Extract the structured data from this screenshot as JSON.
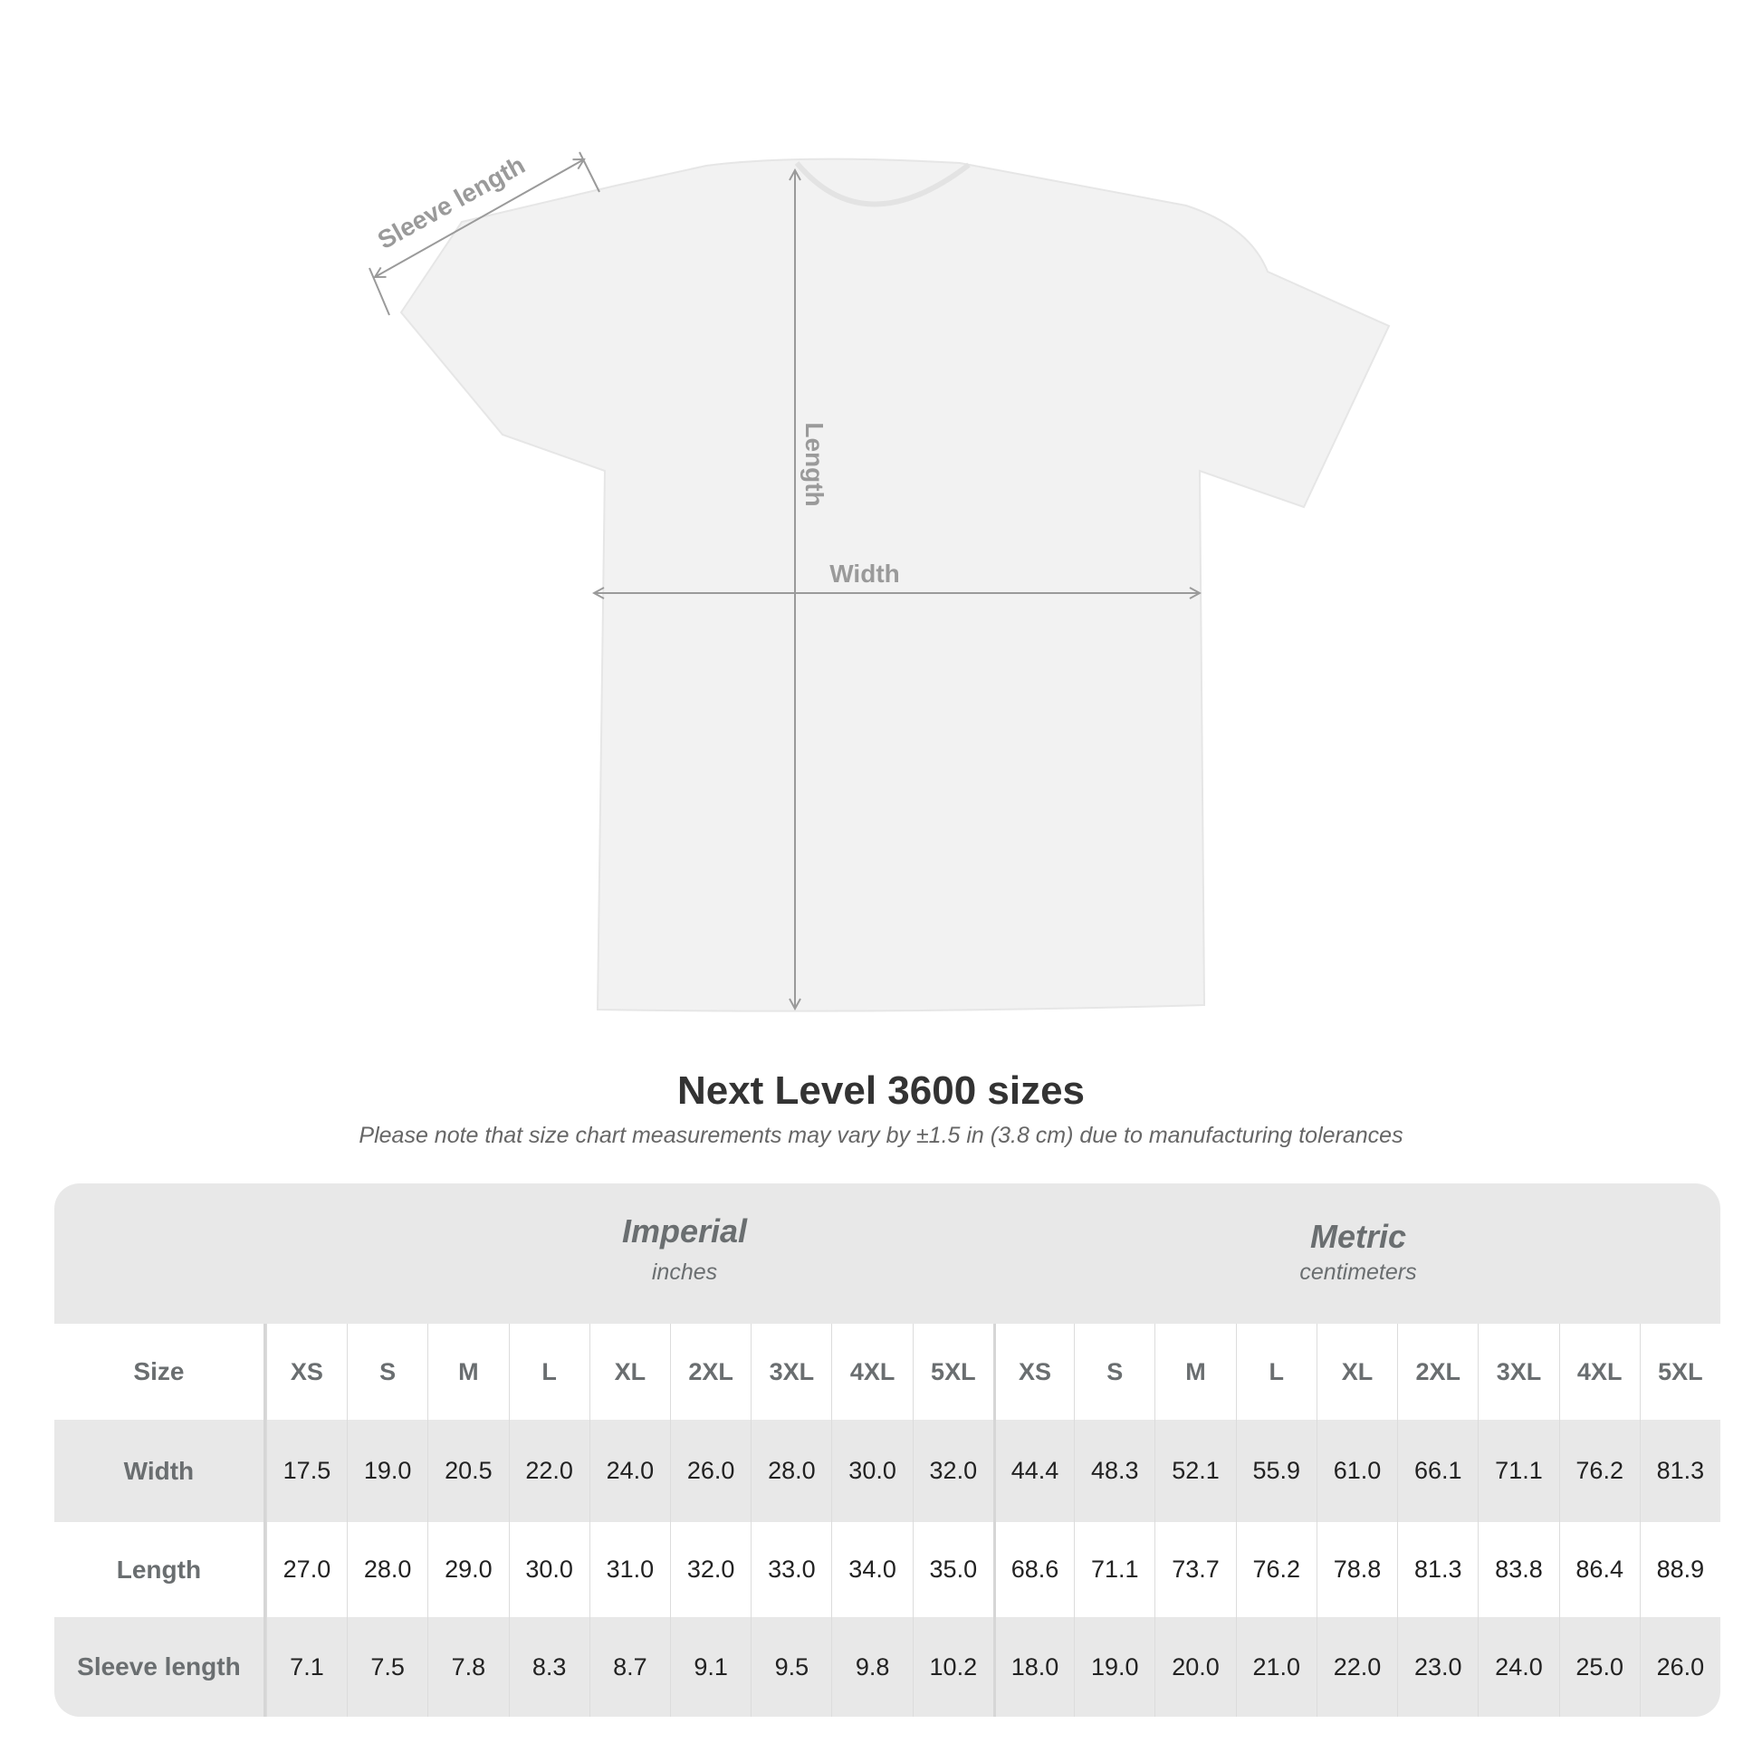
{
  "diagram": {
    "sleeve_label": "Sleeve length",
    "length_label": "Length",
    "width_label": "Width",
    "shirt_color": "#f2f2f2",
    "line_color": "#9a9a9a"
  },
  "title": "Next Level 3600 sizes",
  "note": "Please note that size chart measurements may vary by ±1.5 in (3.8 cm) due to manufacturing tolerances",
  "table": {
    "imperial": {
      "title": "Imperial",
      "unit": "inches"
    },
    "metric": {
      "title": "Metric",
      "unit": "centimeters"
    },
    "size_label": "Size",
    "sizes": [
      "XS",
      "S",
      "M",
      "L",
      "XL",
      "2XL",
      "3XL",
      "4XL",
      "5XL"
    ],
    "rows": [
      {
        "label": "Width",
        "imperial": [
          "17.5",
          "19.0",
          "20.5",
          "22.0",
          "24.0",
          "26.0",
          "28.0",
          "30.0",
          "32.0"
        ],
        "metric": [
          "44.4",
          "48.3",
          "52.1",
          "55.9",
          "61.0",
          "66.1",
          "71.1",
          "76.2",
          "81.3"
        ]
      },
      {
        "label": "Length",
        "imperial": [
          "27.0",
          "28.0",
          "29.0",
          "30.0",
          "31.0",
          "32.0",
          "33.0",
          "34.0",
          "35.0"
        ],
        "metric": [
          "68.6",
          "71.1",
          "73.7",
          "76.2",
          "78.8",
          "81.3",
          "83.8",
          "86.4",
          "88.9"
        ]
      },
      {
        "label": "Sleeve length",
        "imperial": [
          "7.1",
          "7.5",
          "7.8",
          "8.3",
          "8.7",
          "9.1",
          "9.5",
          "9.8",
          "10.2"
        ],
        "metric": [
          "18.0",
          "19.0",
          "20.0",
          "21.0",
          "22.0",
          "23.0",
          "24.0",
          "25.0",
          "26.0"
        ]
      }
    ]
  }
}
